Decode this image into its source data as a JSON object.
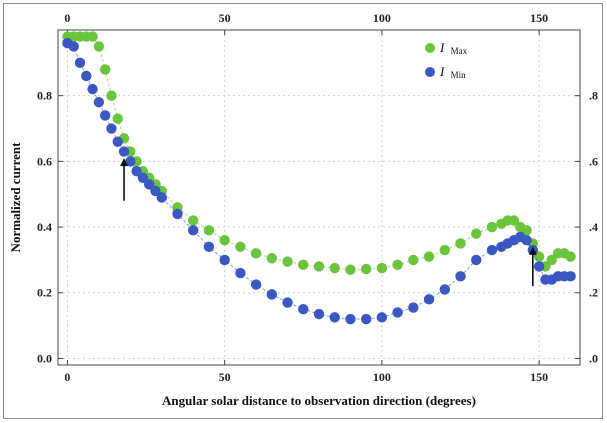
{
  "chart_data": {
    "type": "scatter",
    "title": "",
    "xlabel": "Angular solar distance to observation direction (degrees)",
    "ylabel": "Normalized current",
    "xlim": [
      -3,
      163
    ],
    "ylim": [
      -0.02,
      1.0
    ],
    "x_ticks": [
      0,
      50,
      100,
      150
    ],
    "y_ticks": [
      0.0,
      0.2,
      0.4,
      0.6,
      0.8
    ],
    "x_tick_labels": [
      "0",
      "50",
      "100",
      "150"
    ],
    "y_tick_labels": [
      "0.0",
      "0.2",
      "0.4",
      "0.6",
      "0.8"
    ],
    "top_tick_labels": [
      "0",
      "50",
      "100",
      "150"
    ],
    "right_tick_labels": [
      ".8",
      ".6",
      ".4",
      ".2",
      ".0"
    ],
    "grid": true,
    "legend_position": "top-right",
    "series": [
      {
        "name": "I",
        "subscript": "Max",
        "color": "#6ac53c",
        "x": [
          0,
          2,
          4,
          6,
          8,
          10,
          12,
          14,
          16,
          18,
          20,
          22,
          24,
          26,
          28,
          30,
          35,
          40,
          45,
          50,
          55,
          60,
          65,
          70,
          75,
          80,
          85,
          90,
          95,
          100,
          105,
          110,
          115,
          120,
          125,
          130,
          135,
          138,
          140,
          142,
          144,
          146,
          148,
          150,
          152,
          154,
          156,
          158,
          160
        ],
        "y": [
          0.98,
          0.98,
          0.98,
          0.98,
          0.98,
          0.95,
          0.88,
          0.8,
          0.73,
          0.67,
          0.63,
          0.6,
          0.57,
          0.55,
          0.53,
          0.51,
          0.46,
          0.42,
          0.39,
          0.36,
          0.34,
          0.32,
          0.305,
          0.295,
          0.285,
          0.28,
          0.275,
          0.27,
          0.272,
          0.275,
          0.285,
          0.3,
          0.31,
          0.33,
          0.35,
          0.38,
          0.4,
          0.41,
          0.42,
          0.42,
          0.4,
          0.39,
          0.35,
          0.31,
          0.28,
          0.3,
          0.32,
          0.32,
          0.31
        ]
      },
      {
        "name": "I",
        "subscript": "Min",
        "color": "#3a57c2",
        "x": [
          0,
          2,
          4,
          6,
          8,
          10,
          12,
          14,
          16,
          18,
          20,
          22,
          24,
          26,
          28,
          30,
          35,
          40,
          45,
          50,
          55,
          60,
          65,
          70,
          75,
          80,
          85,
          90,
          95,
          100,
          105,
          110,
          115,
          120,
          125,
          130,
          135,
          138,
          140,
          142,
          144,
          146,
          148,
          150,
          152,
          154,
          156,
          158,
          160
        ],
        "y": [
          0.96,
          0.95,
          0.9,
          0.86,
          0.82,
          0.78,
          0.74,
          0.7,
          0.66,
          0.63,
          0.6,
          0.57,
          0.55,
          0.53,
          0.51,
          0.49,
          0.44,
          0.39,
          0.34,
          0.3,
          0.26,
          0.225,
          0.195,
          0.17,
          0.15,
          0.135,
          0.125,
          0.12,
          0.12,
          0.125,
          0.14,
          0.155,
          0.18,
          0.21,
          0.25,
          0.3,
          0.33,
          0.34,
          0.35,
          0.36,
          0.37,
          0.36,
          0.33,
          0.28,
          0.24,
          0.24,
          0.25,
          0.25,
          0.25
        ]
      }
    ],
    "annotations": [
      {
        "type": "arrow",
        "x": 18,
        "y_from": 0.48,
        "y_to": 0.61
      },
      {
        "type": "arrow",
        "x": 148,
        "y_from": 0.22,
        "y_to": 0.34
      }
    ]
  }
}
